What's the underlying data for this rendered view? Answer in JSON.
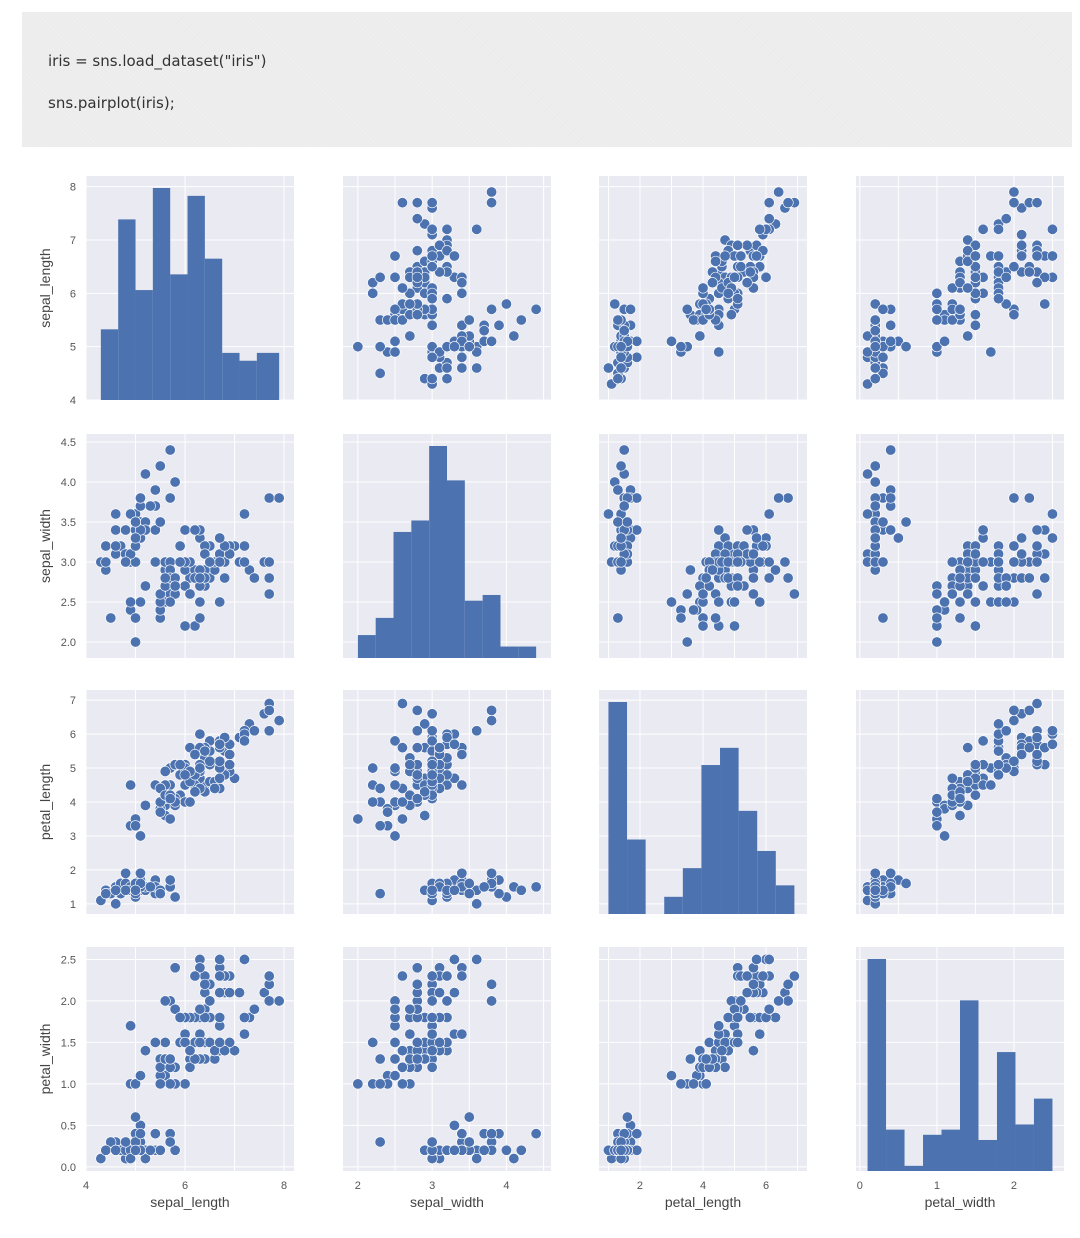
{
  "code": {
    "line1": "iris = sns.load_dataset(\"iris\")",
    "line2": "sns.pairplot(iris);"
  },
  "colors": {
    "panel_bg": "#eaeaf2",
    "grid": "#ffffff",
    "marker": "#4c72b0",
    "tick_text": "#555555"
  },
  "chart_data": {
    "type": "scatter",
    "title": "",
    "variables": [
      "sepal_length",
      "sepal_width",
      "petal_length",
      "petal_width"
    ],
    "axis_ranges": {
      "sepal_length": [
        4.0,
        8.2
      ],
      "sepal_width": [
        1.8,
        4.6
      ],
      "petal_length": [
        0.7,
        7.3
      ],
      "petal_width": [
        -0.05,
        2.65
      ]
    },
    "ticks": {
      "sepal_length": [
        4,
        5,
        6,
        7,
        8
      ],
      "sepal_width": [
        2.0,
        2.5,
        3.0,
        3.5,
        4.0,
        4.5
      ],
      "petal_length": [
        1,
        2,
        3,
        4,
        5,
        6,
        7
      ],
      "petal_width": [
        0.0,
        0.5,
        1.0,
        1.5,
        2.0,
        2.5
      ]
    },
    "tick_labels": {
      "sepal_length_y": [
        "4",
        "5",
        "6",
        "7",
        "8"
      ],
      "sepal_width_y": [
        "2.0",
        "2.5",
        "3.0",
        "3.5",
        "4.0",
        "4.5"
      ],
      "petal_length_y": [
        "1",
        "2",
        "3",
        "4",
        "5",
        "6",
        "7"
      ],
      "petal_width_y": [
        "0.0",
        "0.5",
        "1.0",
        "1.5",
        "2.0",
        "2.5"
      ],
      "sepal_length_x": [
        "4",
        "6",
        "8"
      ],
      "sepal_width_x": [
        "2",
        "3",
        "4"
      ],
      "petal_length_x": [
        "2",
        "4",
        "6"
      ],
      "petal_width_x": [
        "0",
        "1",
        "2"
      ]
    },
    "x_tick_values": {
      "sepal_length": [
        4,
        6,
        8
      ],
      "sepal_width": [
        2,
        3,
        4
      ],
      "petal_length": [
        2,
        4,
        6
      ],
      "petal_width": [
        0,
        1,
        2
      ]
    },
    "histograms": {
      "sepal_length": {
        "edges": [
          4.3,
          4.65,
          5.0,
          5.35,
          5.7,
          6.05,
          6.4,
          6.75,
          7.1,
          7.45,
          7.9
        ],
        "counts": [
          9,
          23,
          14,
          27,
          16,
          26,
          18,
          6,
          5,
          6
        ]
      },
      "sepal_width": {
        "edges": [
          2.0,
          2.24,
          2.48,
          2.72,
          2.96,
          3.2,
          3.44,
          3.68,
          3.92,
          4.16,
          4.4
        ],
        "counts": [
          4,
          7,
          22,
          24,
          37,
          31,
          10,
          11,
          2,
          2
        ]
      },
      "petal_length": {
        "edges": [
          1.0,
          1.59,
          2.18,
          2.77,
          3.36,
          3.95,
          4.54,
          5.13,
          5.72,
          6.31,
          6.9
        ],
        "counts": [
          37,
          13,
          0,
          3,
          8,
          26,
          29,
          18,
          11,
          5
        ]
      },
      "petal_width": {
        "edges": [
          0.1,
          0.34,
          0.58,
          0.82,
          1.06,
          1.3,
          1.54,
          1.78,
          2.02,
          2.26,
          2.5
        ],
        "counts": [
          41,
          8,
          1,
          7,
          8,
          33,
          6,
          23,
          9,
          14
        ]
      }
    },
    "samples": [
      [
        5.1,
        3.5,
        1.4,
        0.2
      ],
      [
        4.9,
        3.0,
        1.4,
        0.2
      ],
      [
        4.7,
        3.2,
        1.3,
        0.2
      ],
      [
        4.6,
        3.1,
        1.5,
        0.2
      ],
      [
        5.0,
        3.6,
        1.4,
        0.2
      ],
      [
        5.4,
        3.9,
        1.7,
        0.4
      ],
      [
        4.6,
        3.4,
        1.4,
        0.3
      ],
      [
        5.0,
        3.4,
        1.5,
        0.2
      ],
      [
        4.4,
        2.9,
        1.4,
        0.2
      ],
      [
        4.9,
        3.1,
        1.5,
        0.1
      ],
      [
        5.4,
        3.7,
        1.5,
        0.2
      ],
      [
        4.8,
        3.4,
        1.6,
        0.2
      ],
      [
        4.8,
        3.0,
        1.4,
        0.1
      ],
      [
        4.3,
        3.0,
        1.1,
        0.1
      ],
      [
        5.8,
        4.0,
        1.2,
        0.2
      ],
      [
        5.7,
        4.4,
        1.5,
        0.4
      ],
      [
        5.4,
        3.9,
        1.3,
        0.4
      ],
      [
        5.1,
        3.5,
        1.4,
        0.3
      ],
      [
        5.7,
        3.8,
        1.7,
        0.3
      ],
      [
        5.1,
        3.8,
        1.5,
        0.3
      ],
      [
        5.4,
        3.4,
        1.7,
        0.2
      ],
      [
        5.1,
        3.7,
        1.5,
        0.4
      ],
      [
        4.6,
        3.6,
        1.0,
        0.2
      ],
      [
        5.1,
        3.3,
        1.7,
        0.5
      ],
      [
        4.8,
        3.4,
        1.9,
        0.2
      ],
      [
        5.0,
        3.0,
        1.6,
        0.2
      ],
      [
        5.0,
        3.4,
        1.6,
        0.4
      ],
      [
        5.2,
        3.5,
        1.5,
        0.2
      ],
      [
        5.2,
        3.4,
        1.4,
        0.2
      ],
      [
        4.7,
        3.2,
        1.6,
        0.2
      ],
      [
        4.8,
        3.1,
        1.6,
        0.2
      ],
      [
        5.4,
        3.4,
        1.5,
        0.4
      ],
      [
        5.2,
        4.1,
        1.5,
        0.1
      ],
      [
        5.5,
        4.2,
        1.4,
        0.2
      ],
      [
        4.9,
        3.1,
        1.5,
        0.2
      ],
      [
        5.0,
        3.2,
        1.2,
        0.2
      ],
      [
        5.5,
        3.5,
        1.3,
        0.2
      ],
      [
        4.9,
        3.6,
        1.4,
        0.1
      ],
      [
        4.4,
        3.0,
        1.3,
        0.2
      ],
      [
        5.1,
        3.4,
        1.5,
        0.2
      ],
      [
        5.0,
        3.5,
        1.3,
        0.3
      ],
      [
        4.5,
        2.3,
        1.3,
        0.3
      ],
      [
        4.4,
        3.2,
        1.3,
        0.2
      ],
      [
        5.0,
        3.5,
        1.6,
        0.6
      ],
      [
        5.1,
        3.8,
        1.9,
        0.4
      ],
      [
        4.8,
        3.0,
        1.4,
        0.3
      ],
      [
        5.1,
        3.8,
        1.6,
        0.2
      ],
      [
        4.6,
        3.2,
        1.4,
        0.2
      ],
      [
        5.3,
        3.7,
        1.5,
        0.2
      ],
      [
        5.0,
        3.3,
        1.4,
        0.2
      ],
      [
        7.0,
        3.2,
        4.7,
        1.4
      ],
      [
        6.4,
        3.2,
        4.5,
        1.5
      ],
      [
        6.9,
        3.1,
        4.9,
        1.5
      ],
      [
        5.5,
        2.3,
        4.0,
        1.3
      ],
      [
        6.5,
        2.8,
        4.6,
        1.5
      ],
      [
        5.7,
        2.8,
        4.5,
        1.3
      ],
      [
        6.3,
        3.3,
        4.7,
        1.6
      ],
      [
        4.9,
        2.4,
        3.3,
        1.0
      ],
      [
        6.6,
        2.9,
        4.6,
        1.3
      ],
      [
        5.2,
        2.7,
        3.9,
        1.4
      ],
      [
        5.0,
        2.0,
        3.5,
        1.0
      ],
      [
        5.9,
        3.0,
        4.2,
        1.5
      ],
      [
        6.0,
        2.2,
        4.0,
        1.0
      ],
      [
        6.1,
        2.9,
        4.7,
        1.4
      ],
      [
        5.6,
        2.9,
        3.6,
        1.3
      ],
      [
        6.7,
        3.1,
        4.4,
        1.4
      ],
      [
        5.6,
        3.0,
        4.5,
        1.5
      ],
      [
        5.8,
        2.7,
        4.1,
        1.0
      ],
      [
        6.2,
        2.2,
        4.5,
        1.5
      ],
      [
        5.6,
        2.5,
        3.9,
        1.1
      ],
      [
        5.9,
        3.2,
        4.8,
        1.8
      ],
      [
        6.1,
        2.8,
        4.0,
        1.3
      ],
      [
        6.3,
        2.5,
        4.9,
        1.5
      ],
      [
        6.1,
        2.8,
        4.7,
        1.2
      ],
      [
        6.4,
        2.9,
        4.3,
        1.3
      ],
      [
        6.6,
        3.0,
        4.4,
        1.4
      ],
      [
        6.8,
        2.8,
        4.8,
        1.4
      ],
      [
        6.7,
        3.0,
        5.0,
        1.7
      ],
      [
        6.0,
        2.9,
        4.5,
        1.5
      ],
      [
        5.7,
        2.6,
        3.5,
        1.0
      ],
      [
        5.5,
        2.4,
        3.8,
        1.1
      ],
      [
        5.5,
        2.4,
        3.7,
        1.0
      ],
      [
        5.8,
        2.7,
        3.9,
        1.2
      ],
      [
        6.0,
        2.7,
        5.1,
        1.6
      ],
      [
        5.4,
        3.0,
        4.5,
        1.5
      ],
      [
        6.0,
        3.4,
        4.5,
        1.6
      ],
      [
        6.7,
        3.1,
        4.7,
        1.5
      ],
      [
        6.3,
        2.3,
        4.4,
        1.3
      ],
      [
        5.6,
        3.0,
        4.1,
        1.3
      ],
      [
        5.5,
        2.5,
        4.0,
        1.3
      ],
      [
        5.5,
        2.6,
        4.4,
        1.2
      ],
      [
        6.1,
        3.0,
        4.6,
        1.4
      ],
      [
        5.8,
        2.6,
        4.0,
        1.2
      ],
      [
        5.0,
        2.3,
        3.3,
        1.0
      ],
      [
        5.6,
        2.7,
        4.2,
        1.3
      ],
      [
        5.7,
        3.0,
        4.2,
        1.2
      ],
      [
        5.7,
        2.9,
        4.2,
        1.3
      ],
      [
        6.2,
        2.9,
        4.3,
        1.3
      ],
      [
        5.1,
        2.5,
        3.0,
        1.1
      ],
      [
        5.7,
        2.8,
        4.1,
        1.3
      ],
      [
        6.3,
        3.3,
        6.0,
        2.5
      ],
      [
        5.8,
        2.7,
        5.1,
        1.9
      ],
      [
        7.1,
        3.0,
        5.9,
        2.1
      ],
      [
        6.3,
        2.9,
        5.6,
        1.8
      ],
      [
        6.5,
        3.0,
        5.8,
        2.2
      ],
      [
        7.6,
        3.0,
        6.6,
        2.1
      ],
      [
        4.9,
        2.5,
        4.5,
        1.7
      ],
      [
        7.3,
        2.9,
        6.3,
        1.8
      ],
      [
        6.7,
        2.5,
        5.8,
        1.8
      ],
      [
        7.2,
        3.6,
        6.1,
        2.5
      ],
      [
        6.5,
        3.2,
        5.1,
        2.0
      ],
      [
        6.4,
        2.7,
        5.3,
        1.9
      ],
      [
        6.8,
        3.0,
        5.5,
        2.1
      ],
      [
        5.7,
        2.5,
        5.0,
        2.0
      ],
      [
        5.8,
        2.8,
        5.1,
        2.4
      ],
      [
        6.4,
        3.2,
        5.3,
        2.3
      ],
      [
        6.5,
        3.0,
        5.5,
        1.8
      ],
      [
        7.7,
        3.8,
        6.7,
        2.2
      ],
      [
        7.7,
        2.6,
        6.9,
        2.3
      ],
      [
        6.0,
        2.2,
        5.0,
        1.5
      ],
      [
        6.9,
        3.2,
        5.7,
        2.3
      ],
      [
        5.6,
        2.8,
        4.9,
        2.0
      ],
      [
        7.7,
        2.8,
        6.7,
        2.0
      ],
      [
        6.3,
        2.7,
        4.9,
        1.8
      ],
      [
        6.7,
        3.3,
        5.7,
        2.1
      ],
      [
        7.2,
        3.2,
        6.0,
        1.8
      ],
      [
        6.2,
        2.8,
        4.8,
        1.8
      ],
      [
        6.1,
        3.0,
        4.9,
        1.8
      ],
      [
        6.4,
        2.8,
        5.6,
        2.1
      ],
      [
        7.2,
        3.0,
        5.8,
        1.6
      ],
      [
        7.4,
        2.8,
        6.1,
        1.9
      ],
      [
        7.9,
        3.8,
        6.4,
        2.0
      ],
      [
        6.4,
        2.8,
        5.6,
        2.2
      ],
      [
        6.3,
        2.8,
        5.1,
        1.5
      ],
      [
        6.1,
        2.6,
        5.6,
        1.4
      ],
      [
        7.7,
        3.0,
        6.1,
        2.3
      ],
      [
        6.3,
        3.4,
        5.6,
        2.4
      ],
      [
        6.4,
        3.1,
        5.5,
        1.8
      ],
      [
        6.0,
        3.0,
        4.8,
        1.8
      ],
      [
        6.9,
        3.1,
        5.4,
        2.1
      ],
      [
        6.7,
        3.1,
        5.6,
        2.4
      ],
      [
        6.9,
        3.1,
        5.1,
        2.3
      ],
      [
        5.8,
        2.7,
        5.1,
        1.9
      ],
      [
        6.8,
        3.2,
        5.9,
        2.3
      ],
      [
        6.7,
        3.3,
        5.7,
        2.5
      ],
      [
        6.7,
        3.0,
        5.2,
        2.3
      ],
      [
        6.3,
        2.5,
        5.0,
        1.9
      ],
      [
        6.5,
        3.0,
        5.2,
        2.0
      ],
      [
        6.2,
        3.4,
        5.4,
        2.3
      ],
      [
        5.9,
        3.0,
        5.1,
        1.8
      ]
    ]
  }
}
